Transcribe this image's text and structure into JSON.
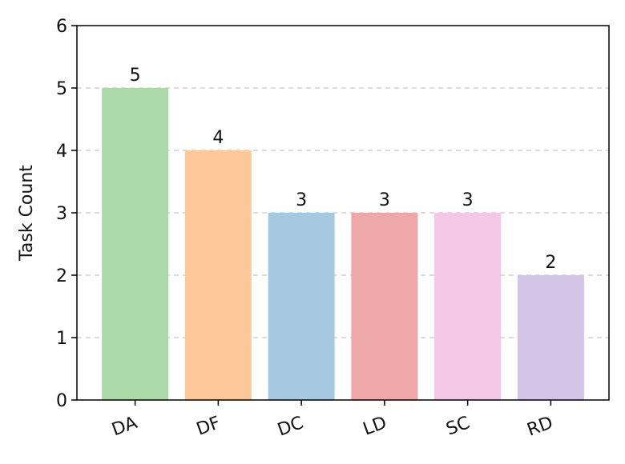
{
  "chart_data": {
    "type": "bar",
    "categories": [
      "DA",
      "DF",
      "DC",
      "LD",
      "SC",
      "RD"
    ],
    "values": [
      5,
      4,
      3,
      3,
      3,
      2
    ],
    "data_labels": [
      "5",
      "4",
      "3",
      "3",
      "3",
      "2"
    ],
    "colors": [
      "#abd9a7",
      "#fec89a",
      "#a6c8e0",
      "#eea8a8",
      "#f3c8e6",
      "#d3c3e4"
    ],
    "title": "",
    "xlabel": "",
    "ylabel": "Task Count",
    "ylim": [
      0,
      6
    ],
    "yticks": [
      0,
      1,
      2,
      3,
      4,
      5,
      6
    ],
    "ytick_labels": [
      "0",
      "1",
      "2",
      "3",
      "4",
      "5",
      "6"
    ],
    "grid": "y-dashed",
    "legend": "none"
  }
}
